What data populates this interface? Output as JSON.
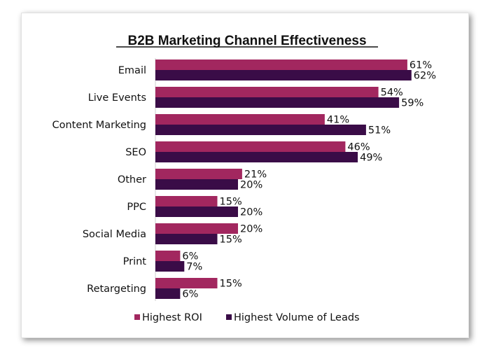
{
  "chart_data": {
    "type": "bar",
    "orientation": "horizontal",
    "title": "B2B Marketing Channel Effectiveness",
    "categories": [
      "Email",
      "Live Events",
      "Content Marketing",
      "SEO",
      "Other",
      "PPC",
      "Social Media",
      "Print",
      "Retargeting"
    ],
    "series": [
      {
        "name": "Highest ROI",
        "color": "#a2275f",
        "values": [
          61,
          54,
          41,
          46,
          21,
          15,
          20,
          6,
          15
        ],
        "labels": [
          "61%",
          "54%",
          "41%",
          "46%",
          "21%",
          "15%",
          "20%",
          "6%",
          "15%"
        ]
      },
      {
        "name": "Highest Volume of Leads",
        "color": "#3a0c47",
        "values": [
          62,
          59,
          51,
          49,
          20,
          20,
          15,
          7,
          6
        ],
        "labels": [
          "62%",
          "59%",
          "51%",
          "49%",
          "20%",
          "20%",
          "15%",
          "7%",
          "6%"
        ]
      }
    ],
    "xlim": [
      0,
      100
    ],
    "xlabel": "",
    "ylabel": "",
    "grid": false,
    "legend": "bottom"
  }
}
